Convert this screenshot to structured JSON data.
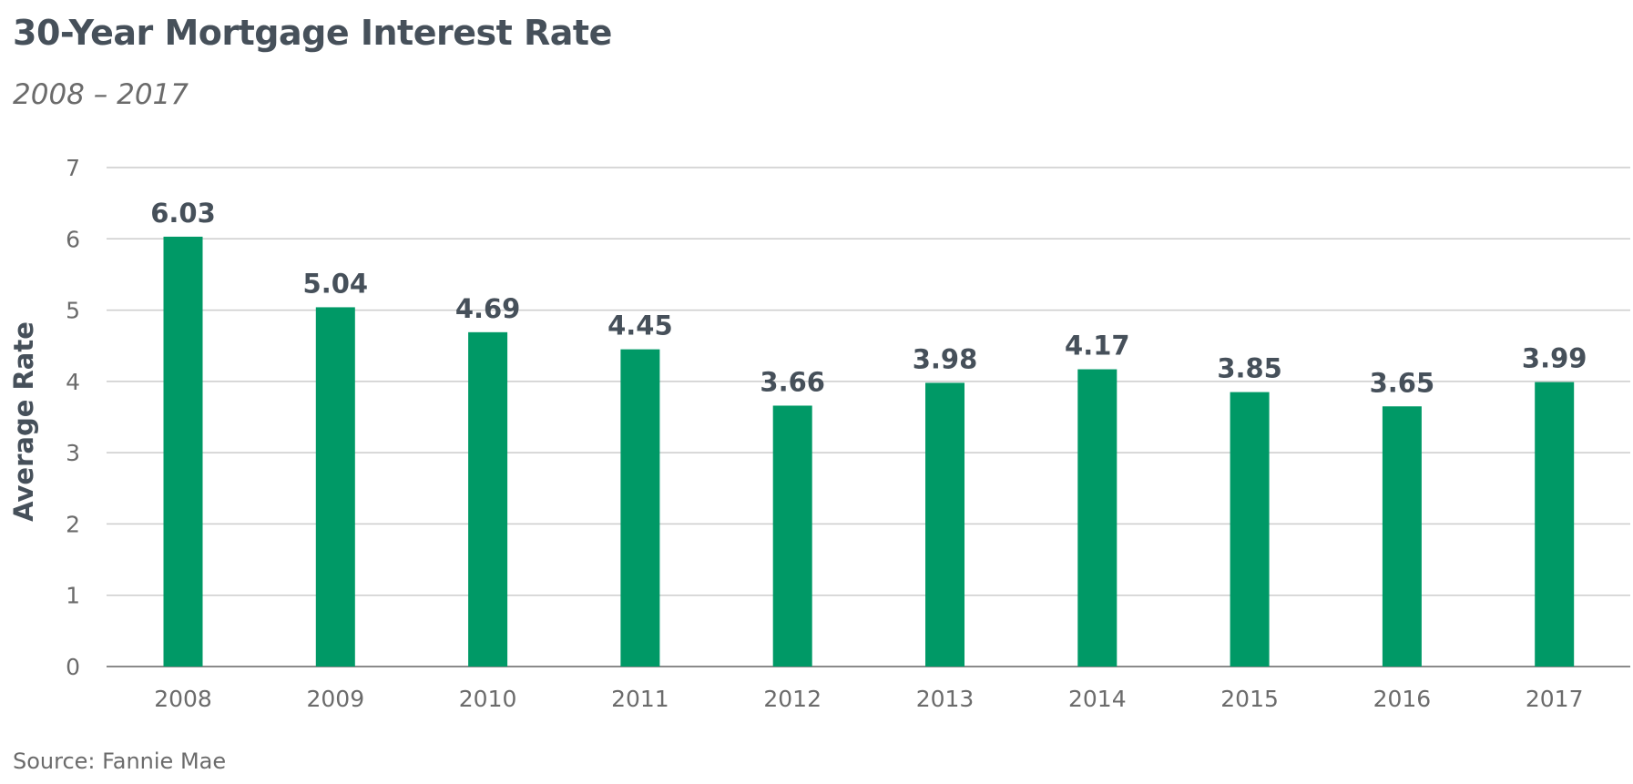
{
  "chart_data": {
    "type": "bar",
    "title": "30-Year Mortgage Interest Rate",
    "subtitle": "2008 – 2017",
    "xlabel": "",
    "ylabel": "Average Rate",
    "categories": [
      "2008",
      "2009",
      "2010",
      "2011",
      "2012",
      "2013",
      "2014",
      "2015",
      "2016",
      "2017"
    ],
    "values": [
      6.03,
      5.04,
      4.69,
      4.45,
      3.66,
      3.98,
      4.17,
      3.85,
      3.65,
      3.99
    ],
    "data_labels": [
      "6.03",
      "5.04",
      "4.69",
      "4.45",
      "3.66",
      "3.98",
      "4.17",
      "3.85",
      "3.65",
      "3.99"
    ],
    "ylim": [
      0,
      7
    ],
    "yticks": [
      "0",
      "1",
      "2",
      "3",
      "4",
      "5",
      "6",
      "7"
    ],
    "grid": true,
    "legend": "none",
    "bar_color": "#009966",
    "gridline_color": "#cccccc",
    "source": "Source: Fannie Mae"
  }
}
